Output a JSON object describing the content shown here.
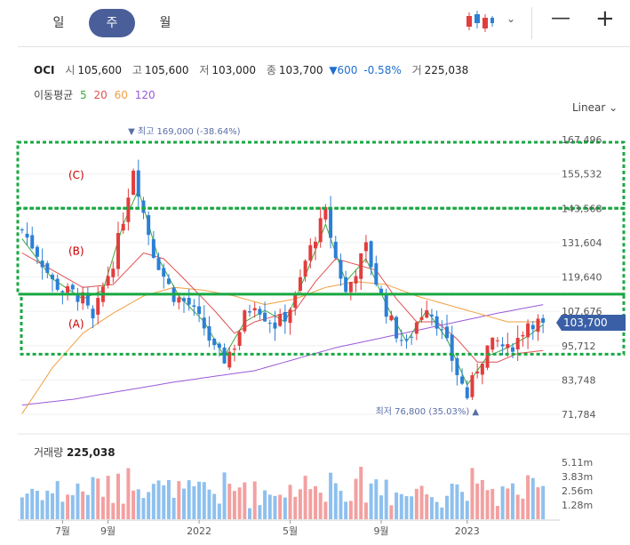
{
  "period_tabs": [
    {
      "label": "일",
      "active": false
    },
    {
      "label": "주",
      "active": true
    },
    {
      "label": "월",
      "active": false
    }
  ],
  "chart_type_icon": "candlestick-icon",
  "zoom": {
    "out": "—",
    "in": "+"
  },
  "quote": {
    "name": "OCI",
    "open_label": "시",
    "open": "105,600",
    "high_label": "고",
    "high": "105,600",
    "low_label": "저",
    "low": "103,000",
    "close_label": "종",
    "close": "103,700",
    "change": "▼600",
    "change_pct": "-0.58%",
    "volume_label": "거",
    "volume": "225,038"
  },
  "moving_average": {
    "label": "이동평균",
    "periods": [
      {
        "value": "5",
        "color": "#3daa3d"
      },
      {
        "value": "20",
        "color": "#e05050"
      },
      {
        "value": "60",
        "color": "#f0a040"
      },
      {
        "value": "120",
        "color": "#9a5ad8"
      }
    ]
  },
  "scale_label": "Linear",
  "colors": {
    "up": "#e23d3d",
    "down": "#2b7fd6",
    "annotation": "#19a843",
    "zone_label": "#cc0000",
    "price_tag": "#3a5fa6"
  },
  "chart_data": {
    "type": "candlestick",
    "y_ticks": [
      "167,496",
      "155,532",
      "143,568",
      "131,604",
      "119,640",
      "107,676",
      "95,712",
      "83,748",
      "71,784"
    ],
    "ylim": [
      71784,
      167496
    ],
    "x_ticks": [
      {
        "label": "7월",
        "week": 8
      },
      {
        "label": "9월",
        "week": 17
      },
      {
        "label": "2022",
        "week": 35
      },
      {
        "label": "5월",
        "week": 53
      },
      {
        "label": "9월",
        "week": 71
      },
      {
        "label": "2023",
        "week": 88
      }
    ],
    "weeks": 104,
    "current_price": "103,700",
    "high_annotation": {
      "text": "▼ 최고 169,000 (-38.64%)",
      "week": 22,
      "value": 169000
    },
    "low_annotation": {
      "text": "최저 76,800 (35.03%) ▲",
      "week": 90,
      "value": 76800
    },
    "zones": [
      {
        "label": "(C)",
        "top": 167496,
        "bottom": 143568
      },
      {
        "label": "(B)",
        "top": 143568,
        "bottom": 113658
      },
      {
        "label": "(A)",
        "top": 113658,
        "bottom": 92721
      }
    ],
    "volume": {
      "label": "거래량",
      "value": "225,038",
      "ticks": [
        "5.11m",
        "3.83m",
        "2.56m",
        "1.28m"
      ],
      "max": 5110000
    },
    "close_anchors": [
      [
        0,
        136000
      ],
      [
        3,
        128000
      ],
      [
        6,
        118000
      ],
      [
        8,
        115000
      ],
      [
        10,
        114000
      ],
      [
        12,
        112000
      ],
      [
        14,
        104000
      ],
      [
        16,
        116000
      ],
      [
        18,
        125000
      ],
      [
        20,
        140000
      ],
      [
        22,
        158000
      ],
      [
        24,
        142000
      ],
      [
        26,
        128000
      ],
      [
        28,
        120000
      ],
      [
        30,
        113000
      ],
      [
        33,
        110000
      ],
      [
        36,
        102000
      ],
      [
        38,
        94000
      ],
      [
        40,
        91000
      ],
      [
        42,
        96000
      ],
      [
        44,
        106000
      ],
      [
        46,
        111000
      ],
      [
        48,
        106000
      ],
      [
        50,
        103000
      ],
      [
        52,
        106000
      ],
      [
        54,
        112000
      ],
      [
        56,
        125000
      ],
      [
        58,
        134000
      ],
      [
        60,
        142000
      ],
      [
        62,
        126000
      ],
      [
        64,
        114000
      ],
      [
        66,
        122000
      ],
      [
        68,
        130000
      ],
      [
        70,
        118000
      ],
      [
        72,
        108000
      ],
      [
        74,
        100000
      ],
      [
        76,
        96000
      ],
      [
        78,
        104000
      ],
      [
        80,
        110000
      ],
      [
        82,
        104000
      ],
      [
        84,
        96000
      ],
      [
        86,
        86000
      ],
      [
        88,
        78000
      ],
      [
        90,
        88000
      ],
      [
        92,
        95000
      ],
      [
        94,
        97000
      ],
      [
        96,
        94000
      ],
      [
        98,
        98000
      ],
      [
        100,
        104000
      ],
      [
        103,
        103700
      ]
    ],
    "ma5": [
      [
        0,
        133000
      ],
      [
        6,
        119000
      ],
      [
        12,
        112000
      ],
      [
        16,
        115000
      ],
      [
        20,
        138000
      ],
      [
        23,
        150000
      ],
      [
        27,
        126000
      ],
      [
        31,
        113000
      ],
      [
        36,
        104000
      ],
      [
        40,
        92000
      ],
      [
        44,
        104000
      ],
      [
        48,
        108000
      ],
      [
        52,
        104000
      ],
      [
        56,
        120000
      ],
      [
        60,
        138000
      ],
      [
        64,
        118000
      ],
      [
        68,
        126000
      ],
      [
        72,
        110000
      ],
      [
        76,
        97000
      ],
      [
        80,
        108000
      ],
      [
        84,
        98000
      ],
      [
        88,
        82000
      ],
      [
        92,
        92000
      ],
      [
        96,
        95000
      ],
      [
        100,
        99000
      ],
      [
        103,
        103000
      ]
    ],
    "ma20": [
      [
        0,
        128000
      ],
      [
        6,
        122000
      ],
      [
        12,
        116000
      ],
      [
        18,
        117000
      ],
      [
        24,
        128000
      ],
      [
        28,
        126000
      ],
      [
        32,
        119000
      ],
      [
        38,
        108000
      ],
      [
        42,
        100000
      ],
      [
        46,
        104000
      ],
      [
        50,
        106000
      ],
      [
        54,
        108000
      ],
      [
        58,
        118000
      ],
      [
        62,
        126000
      ],
      [
        66,
        124000
      ],
      [
        70,
        122000
      ],
      [
        74,
        112000
      ],
      [
        78,
        104000
      ],
      [
        82,
        104000
      ],
      [
        86,
        98000
      ],
      [
        90,
        90000
      ],
      [
        94,
        90000
      ],
      [
        98,
        93000
      ],
      [
        103,
        94000
      ]
    ],
    "ma60": [
      [
        0,
        72000
      ],
      [
        6,
        88000
      ],
      [
        12,
        100000
      ],
      [
        18,
        107000
      ],
      [
        24,
        113000
      ],
      [
        30,
        116000
      ],
      [
        36,
        115000
      ],
      [
        42,
        113000
      ],
      [
        48,
        110000
      ],
      [
        54,
        112000
      ],
      [
        60,
        116000
      ],
      [
        66,
        118000
      ],
      [
        72,
        117000
      ],
      [
        78,
        113000
      ],
      [
        84,
        110000
      ],
      [
        90,
        107000
      ],
      [
        96,
        104000
      ],
      [
        103,
        104000
      ]
    ],
    "ma120": [
      [
        0,
        75000
      ],
      [
        10,
        77000
      ],
      [
        20,
        80000
      ],
      [
        30,
        83000
      ],
      [
        38,
        85000
      ],
      [
        46,
        87000
      ],
      [
        54,
        91000
      ],
      [
        62,
        95000
      ],
      [
        70,
        98000
      ],
      [
        78,
        101000
      ],
      [
        86,
        104000
      ],
      [
        94,
        107000
      ],
      [
        103,
        110000
      ]
    ]
  }
}
